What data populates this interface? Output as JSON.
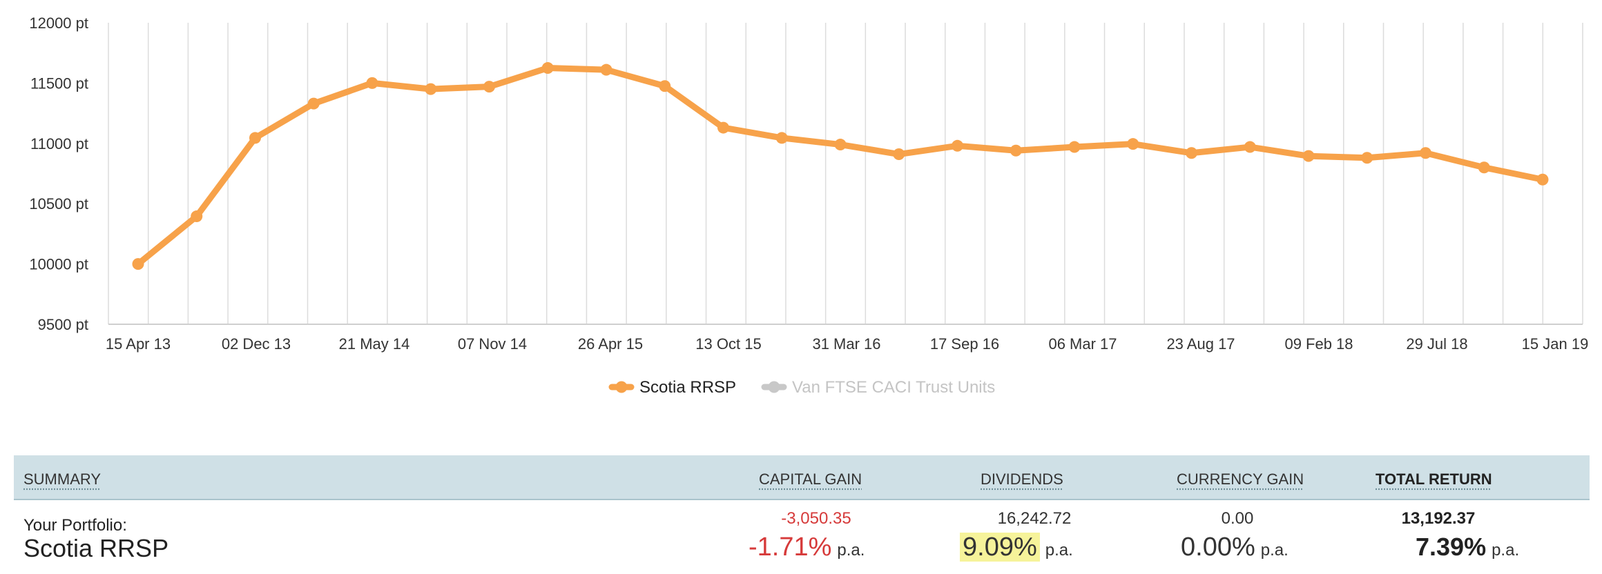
{
  "colors": {
    "series_primary": "#f7a24a",
    "series_inactive": "#c8c8c8",
    "negative": "#d63a3a",
    "highlight": "#f6f39a",
    "summary_header_bg": "#cfe0e6"
  },
  "chart_data": {
    "type": "line",
    "y_unit_suffix": " pt",
    "ylim": [
      9500,
      12000
    ],
    "y_ticks": [
      9500,
      10000,
      10500,
      11000,
      11500,
      12000
    ],
    "y_tick_labels": [
      "9500 pt",
      "10000 pt",
      "10500 pt",
      "11000 pt",
      "11500 pt",
      "12000 pt"
    ],
    "x_tick_labels": [
      "15 Apr 13",
      "02 Dec 13",
      "21 May 14",
      "07 Nov 14",
      "26 Apr 15",
      "13 Oct 15",
      "31 Mar 16",
      "17 Sep 16",
      "06 Mar 17",
      "23 Aug 17",
      "09 Feb 18",
      "29 Jul 18",
      "15 Jan 19"
    ],
    "grid": true,
    "legend_position": "bottom-center",
    "series": [
      {
        "name": "Scotia RRSP",
        "active": true,
        "values": [
          10000,
          10395,
          11045,
          11330,
          11500,
          11450,
          11470,
          11625,
          11610,
          11475,
          11130,
          11045,
          10990,
          10910,
          10980,
          10940,
          10970,
          10995,
          10920,
          10970,
          10895,
          10880,
          10920,
          10800,
          10700
        ]
      },
      {
        "name": "Van FTSE CACI Trust Units",
        "active": false,
        "values": []
      }
    ]
  },
  "summary": {
    "headers": {
      "summary": "SUMMARY",
      "capital_gain": "CAPITAL GAIN",
      "dividends": "DIVIDENDS",
      "currency_gain": "CURRENCY GAIN",
      "total_return": "TOTAL RETURN"
    },
    "portfolio_label": "Your Portfolio:",
    "portfolio_name": "Scotia RRSP",
    "capital_gain": {
      "amount": "-3,050.35",
      "percent": "-1.71%",
      "suffix": "p.a."
    },
    "dividends": {
      "amount": "16,242.72",
      "percent": "9.09%",
      "suffix": "p.a."
    },
    "currency_gain": {
      "amount": "0.00",
      "percent": "0.00%",
      "suffix": "p.a."
    },
    "total_return": {
      "amount": "13,192.37",
      "percent": "7.39%",
      "suffix": "p.a."
    }
  }
}
